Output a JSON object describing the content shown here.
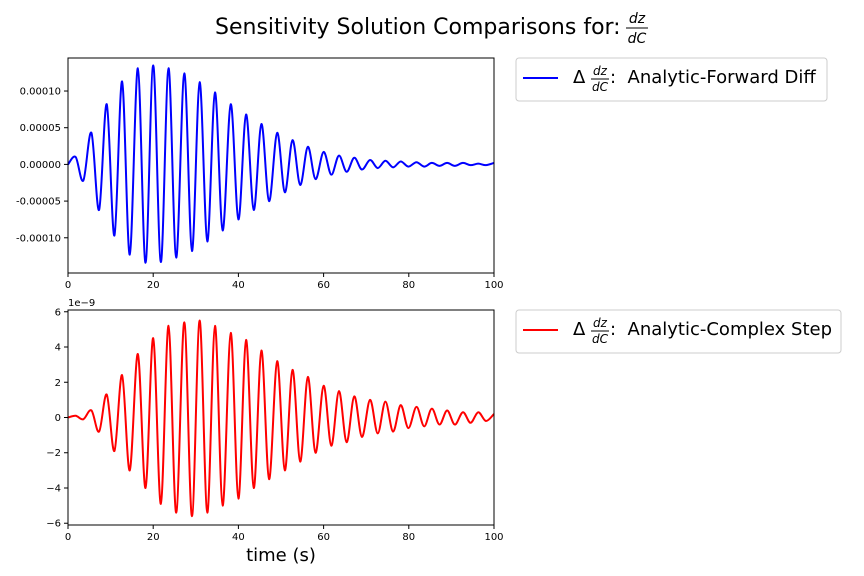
{
  "figure": {
    "title_prefix": "Sensitivity Solution Comparisons for: ",
    "title_frac": {
      "num": "dz",
      "den": "dC"
    },
    "xlabel": "time (s)"
  },
  "chart_data": [
    {
      "type": "line",
      "xlim": [
        0,
        100
      ],
      "ylim": [
        -0.000148,
        0.000145
      ],
      "xticks": [
        "0",
        "20",
        "40",
        "60",
        "80",
        "100"
      ],
      "yticks": [
        "0.00010",
        "0.00005",
        "0.00000",
        "-0.00005",
        "-0.00010"
      ],
      "ytick_values": [
        0.0001,
        5e-05,
        0,
        -5e-05,
        -0.0001
      ],
      "offset_text": "",
      "grid": false,
      "legend_position": "outside-right",
      "series": [
        {
          "name_prefix": "Δ",
          "name_frac": {
            "num": "dz",
            "den": "dC"
          },
          "name_suffix": ":  Analytic-Forward Diff",
          "color": "#0000ff",
          "x": [
            0,
            1.8,
            3.6,
            5.5,
            7.3,
            9.1,
            10.9,
            12.7,
            14.5,
            16.4,
            18.2,
            20.0,
            21.8,
            23.6,
            25.4,
            27.3,
            29.1,
            30.9,
            32.7,
            34.5,
            36.3,
            38.2,
            40.0,
            41.8,
            43.6,
            45.4,
            47.2,
            49.1,
            50.9,
            52.7,
            54.5,
            56.3,
            58.1,
            60.0,
            61.8,
            63.6,
            65.4,
            67.2,
            69.0,
            70.9,
            72.7,
            74.5,
            76.3,
            78.1,
            79.9,
            81.8,
            83.6,
            85.4,
            87.2,
            89.0,
            90.8,
            92.7,
            94.5,
            96.3,
            98.1,
            100
          ],
          "y": [
            0.0,
            1e-05,
            -2.2e-05,
            4.3e-05,
            -6.2e-05,
            8.2e-05,
            -9.7e-05,
            0.000113,
            -0.000123,
            0.000131,
            -0.000134,
            0.000135,
            -0.000133,
            0.000131,
            -0.000127,
            0.000124,
            -0.000118,
            0.000112,
            -0.000105,
            9.8e-05,
            -9e-05,
            8.2e-05,
            -7.5e-05,
            6.8e-05,
            -6.2e-05,
            5.5e-05,
            -5e-05,
            4.3e-05,
            -3.8e-05,
            3.3e-05,
            -2.8e-05,
            2.4e-05,
            -2e-05,
            1.7e-05,
            -1.4e-05,
            1.2e-05,
            -1e-05,
            9e-06,
            -7e-06,
            6e-06,
            -5e-06,
            5e-06,
            -4e-06,
            4e-06,
            -3e-06,
            3e-06,
            -3e-06,
            2e-06,
            -2e-06,
            2e-06,
            -2e-06,
            2e-06,
            -1e-06,
            1e-06,
            -1e-06,
            2e-06
          ]
        }
      ]
    },
    {
      "type": "line",
      "xlim": [
        0,
        100
      ],
      "ylim": [
        -6.1e-09,
        6.1e-09
      ],
      "xticks": [
        "0",
        "20",
        "40",
        "60",
        "80",
        "100"
      ],
      "yticks": [
        "6",
        "4",
        "2",
        "0",
        "−2",
        "−4",
        "−6"
      ],
      "ytick_values": [
        6e-09,
        4e-09,
        2e-09,
        0,
        -2e-09,
        -4e-09,
        -6e-09
      ],
      "offset_text": "1e−9",
      "grid": false,
      "legend_position": "outside-right",
      "series": [
        {
          "name_prefix": "Δ",
          "name_frac": {
            "num": "dz",
            "den": "dC"
          },
          "name_suffix": ":  Analytic-Complex Step",
          "color": "#ff0000",
          "x": [
            0,
            1.8,
            3.6,
            5.5,
            7.3,
            9.1,
            10.9,
            12.7,
            14.5,
            16.4,
            18.2,
            20.0,
            21.8,
            23.6,
            25.4,
            27.3,
            29.1,
            30.9,
            32.7,
            34.5,
            36.3,
            38.2,
            40.0,
            41.8,
            43.6,
            45.4,
            47.2,
            49.1,
            50.9,
            52.7,
            54.5,
            56.3,
            58.1,
            60.0,
            61.8,
            63.6,
            65.4,
            67.2,
            69.0,
            70.9,
            72.7,
            74.5,
            76.3,
            78.1,
            79.9,
            81.8,
            83.6,
            85.4,
            87.2,
            89.0,
            90.8,
            92.7,
            94.5,
            96.3,
            98.1,
            100
          ],
          "y": [
            0.0,
            1e-10,
            -1e-10,
            4e-10,
            -8e-10,
            1.3e-09,
            -1.9e-09,
            2.4e-09,
            -3e-09,
            3.6e-09,
            -4e-09,
            4.5e-09,
            -4.9e-09,
            5.2e-09,
            -5.4e-09,
            5.4e-09,
            -5.6e-09,
            5.5e-09,
            -5.4e-09,
            5.2e-09,
            -5e-09,
            4.8e-09,
            -4.6e-09,
            4.4e-09,
            -4e-09,
            3.8e-09,
            -3.5e-09,
            3.2e-09,
            -3e-09,
            2.7e-09,
            -2.5e-09,
            2.3e-09,
            -2e-09,
            1.8e-09,
            -1.6e-09,
            1.5e-09,
            -1.4e-09,
            1.2e-09,
            -1.1e-09,
            1e-09,
            -9e-10,
            9e-10,
            -8e-10,
            7e-10,
            -6e-10,
            6e-10,
            -5e-10,
            5e-10,
            -4e-10,
            4e-10,
            -4e-10,
            3e-10,
            -3e-10,
            3e-10,
            -2e-10,
            2e-10
          ]
        }
      ]
    }
  ]
}
